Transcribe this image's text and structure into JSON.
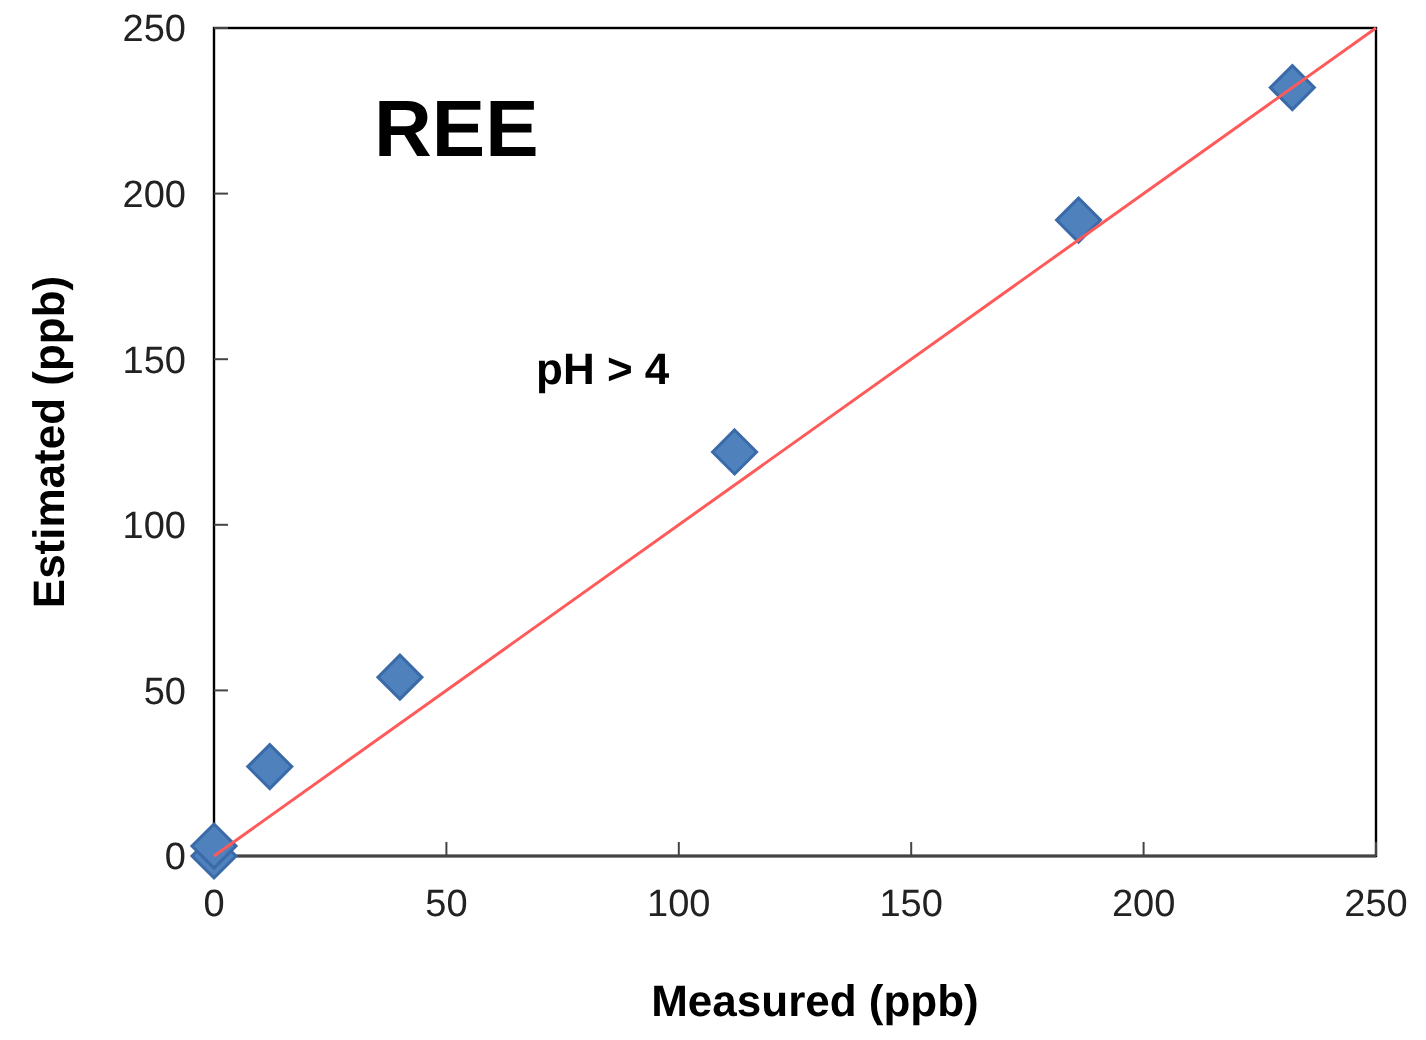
{
  "chart_data": {
    "type": "scatter",
    "xlabel": "Measured (ppb)",
    "ylabel": "Estimated (ppb)",
    "annotations": [
      "REE",
      "pH > 4"
    ],
    "xlim": [
      0,
      250
    ],
    "ylim": [
      0,
      250
    ],
    "xticks": [
      0,
      50,
      100,
      150,
      200,
      250
    ],
    "yticks": [
      0,
      50,
      100,
      150,
      200,
      250
    ],
    "grid": false,
    "series": [
      {
        "color": "#4f81bd",
        "marker": "diamond",
        "x": [
          0,
          0,
          12,
          40,
          112,
          186,
          232
        ],
        "values": [
          0,
          3,
          27,
          54,
          122,
          192,
          232
        ]
      },
      {
        "type": "line",
        "color": "#ff5a5a",
        "x": [
          0,
          250
        ],
        "values": [
          0,
          250
        ]
      }
    ]
  }
}
